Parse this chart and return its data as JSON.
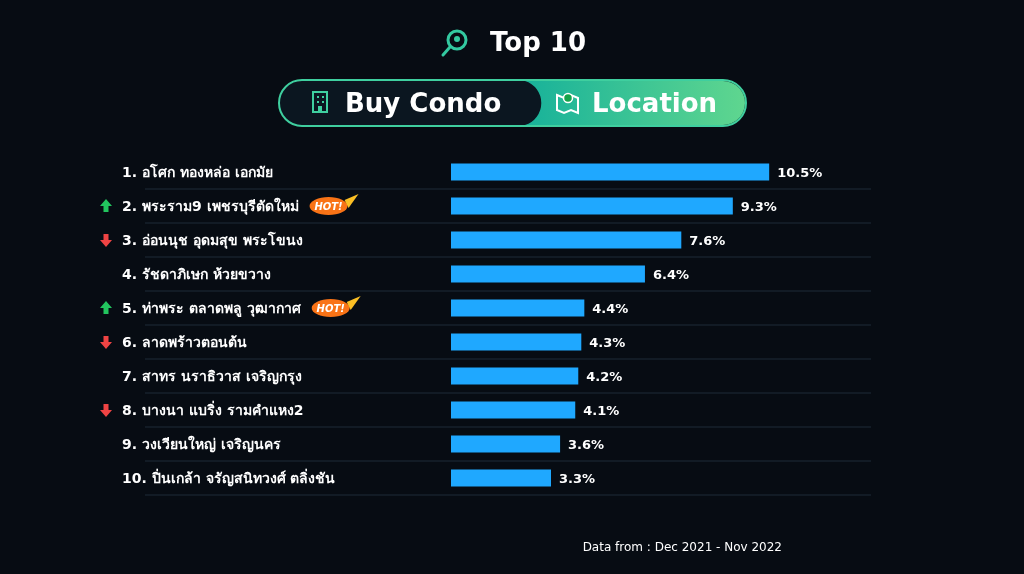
{
  "chart_data": {
    "type": "bar",
    "orientation": "horizontal",
    "title": "Top 10",
    "subtitle": "Buy Condo",
    "categories": [
      "1. อโศก ทองหล่อ เอกมัย",
      "2. พระราม9 เพชรบุรีตัดใหม่",
      "3. อ่อนนุช อุดมสุข พระโขนง",
      "4. รัชดาภิเษก ห้วยขวาง",
      "5. ท่าพระ ตลาดพลู วุฒากาศ",
      "6. ลาดพร้าวตอนต้น",
      "7. สาทร นราธิวาส เจริญกรุง",
      "8. บางนา แบริ่ง รามคำแหง2",
      "9. วงเวียนใหญ่ เจริญนคร",
      "10. ปิ่นเกล้า จรัญสนิทวงศ์ ตลิ่งชัน"
    ],
    "values": [
      10.5,
      9.3,
      7.6,
      6.4,
      4.4,
      4.3,
      4.2,
      4.1,
      3.6,
      3.3
    ],
    "value_labels": [
      "10.5%",
      "9.3%",
      "7.6%",
      "6.4%",
      "4.4%",
      "4.3%",
      "4.2%",
      "4.1%",
      "3.6%",
      "3.3%"
    ],
    "color": "#1fa8ff",
    "annotations": [
      "Location",
      "Data from : Dec 2021 - Nov 2022",
      "HOT!",
      "HOT!"
    ]
  }
}
